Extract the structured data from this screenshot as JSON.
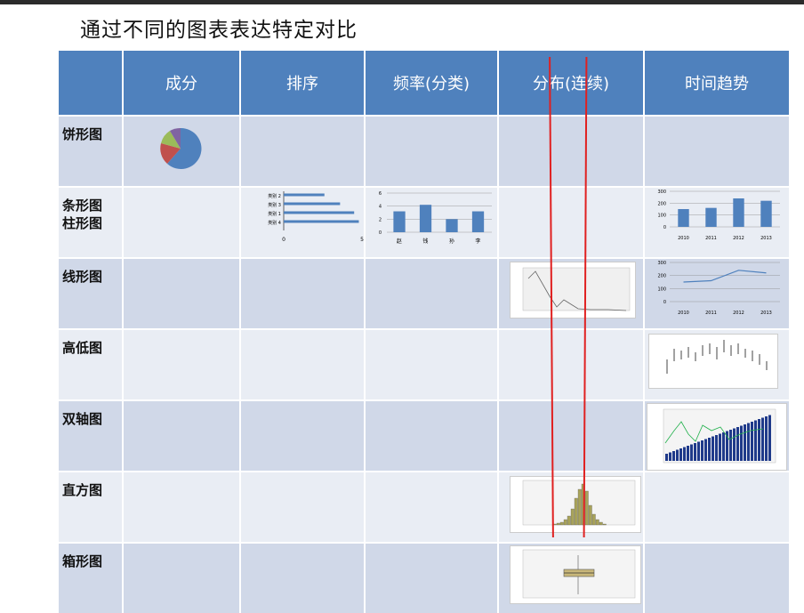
{
  "title": "通过不同的图表表达特定对比",
  "columns": [
    "",
    "成分",
    "排序",
    "频率(分类)",
    "分布(连续)",
    "时间趋势"
  ],
  "rows": [
    {
      "label_lines": [
        "饼形图"
      ]
    },
    {
      "label_lines": [
        "条形图",
        "柱形图"
      ]
    },
    {
      "label_lines": [
        "线形图"
      ]
    },
    {
      "label_lines": [
        "高低图"
      ]
    },
    {
      "label_lines": [
        "双轴图"
      ]
    },
    {
      "label_lines": [
        "直方图"
      ]
    },
    {
      "label_lines": [
        "箱形图"
      ]
    }
  ],
  "mini_bar": {
    "labels": [
      "类别 2",
      "类别 3",
      "类别 1",
      "类别 4"
    ],
    "values": [
      2.6,
      3.6,
      4.5,
      4.8
    ],
    "xticks": [
      "0",
      "5"
    ]
  },
  "mini_column": {
    "labels": [
      "赵",
      "钱",
      "孙",
      "李"
    ],
    "values": [
      3.2,
      4.2,
      2.0,
      3.2
    ],
    "yticks": [
      "6",
      "4",
      "2",
      "0"
    ]
  },
  "mini_time_col": {
    "labels": [
      "2010",
      "2011",
      "2012",
      "2013"
    ],
    "values": [
      150,
      160,
      240,
      220
    ],
    "yticks": [
      "300",
      "200",
      "100",
      "0"
    ]
  },
  "mini_time_line": {
    "labels": [
      "2010",
      "2011",
      "2012",
      "2013"
    ],
    "values": [
      150,
      160,
      240,
      220
    ],
    "yticks": [
      "300",
      "200",
      "100",
      "0"
    ]
  },
  "colors": {
    "header": "#4f81bd",
    "row_odd": "#d0d8e8",
    "row_even": "#e9edf4",
    "bar": "#4f81bd",
    "pie": [
      "#4f81bd",
      "#c0504d",
      "#9bbb59",
      "#8064a2"
    ]
  }
}
